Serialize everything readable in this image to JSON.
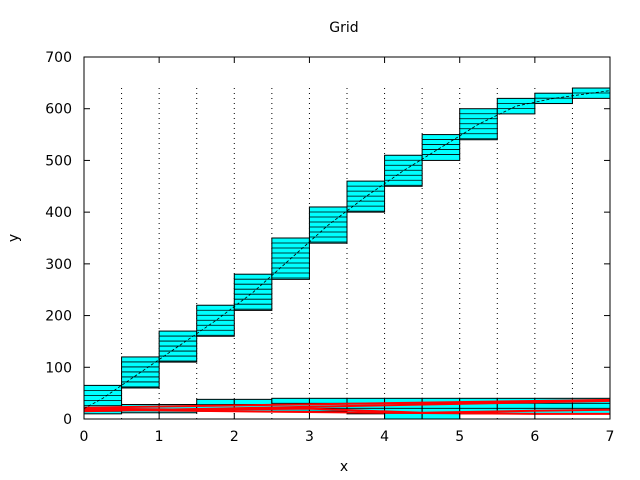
{
  "chart_data": {
    "type": "bar",
    "title": "Grid",
    "xlabel": "x",
    "ylabel": "y",
    "xlim": [
      0,
      7
    ],
    "ylim": [
      0,
      700
    ],
    "xticks": [
      0,
      1,
      2,
      3,
      4,
      5,
      6,
      7
    ],
    "yticks": [
      0,
      100,
      200,
      300,
      400,
      500,
      600,
      700
    ],
    "grid": "vertical dotted every 0.5",
    "upper_bars": [
      {
        "x0": 0.0,
        "x1": 0.5,
        "low": 15,
        "high": 65
      },
      {
        "x0": 0.5,
        "x1": 1.0,
        "low": 60,
        "high": 120
      },
      {
        "x0": 1.0,
        "x1": 1.5,
        "low": 110,
        "high": 170
      },
      {
        "x0": 1.5,
        "x1": 2.0,
        "low": 160,
        "high": 220
      },
      {
        "x0": 2.0,
        "x1": 2.5,
        "low": 210,
        "high": 280
      },
      {
        "x0": 2.5,
        "x1": 3.0,
        "low": 270,
        "high": 350
      },
      {
        "x0": 3.0,
        "x1": 3.5,
        "low": 340,
        "high": 410
      },
      {
        "x0": 3.5,
        "x1": 4.0,
        "low": 400,
        "high": 460
      },
      {
        "x0": 4.0,
        "x1": 4.5,
        "low": 450,
        "high": 510
      },
      {
        "x0": 4.5,
        "x1": 5.0,
        "low": 500,
        "high": 550
      },
      {
        "x0": 5.0,
        "x1": 5.5,
        "low": 540,
        "high": 600
      },
      {
        "x0": 5.5,
        "x1": 6.0,
        "low": 590,
        "high": 620
      },
      {
        "x0": 6.0,
        "x1": 6.5,
        "low": 610,
        "high": 630
      },
      {
        "x0": 6.5,
        "x1": 7.0,
        "low": 620,
        "high": 640
      }
    ],
    "lower_bars": [
      {
        "x0": 0.0,
        "x1": 0.5,
        "low": 10,
        "high": 28
      },
      {
        "x0": 0.5,
        "x1": 1.0,
        "low": 12,
        "high": 28
      },
      {
        "x0": 1.0,
        "x1": 1.5,
        "low": 12,
        "high": 28
      },
      {
        "x0": 1.5,
        "x1": 2.0,
        "low": 15,
        "high": 38
      },
      {
        "x0": 2.0,
        "x1": 2.5,
        "low": 15,
        "high": 38
      },
      {
        "x0": 2.5,
        "x1": 3.0,
        "low": 15,
        "high": 40
      },
      {
        "x0": 3.0,
        "x1": 3.5,
        "low": 15,
        "high": 40
      },
      {
        "x0": 3.5,
        "x1": 4.0,
        "low": 10,
        "high": 40
      },
      {
        "x0": 4.0,
        "x1": 4.5,
        "low": 0,
        "high": 40
      },
      {
        "x0": 4.5,
        "x1": 5.0,
        "low": 0,
        "high": 40
      },
      {
        "x0": 5.0,
        "x1": 5.5,
        "low": 10,
        "high": 40
      },
      {
        "x0": 5.5,
        "x1": 6.0,
        "low": 10,
        "high": 40
      },
      {
        "x0": 6.0,
        "x1": 6.5,
        "low": 10,
        "high": 40
      },
      {
        "x0": 6.5,
        "x1": 7.0,
        "low": 10,
        "high": 40
      }
    ],
    "curve": {
      "x": [
        0,
        0.25,
        0.75,
        1.25,
        1.75,
        2.25,
        2.75,
        3.25,
        3.75,
        4.25,
        4.75,
        5.25,
        5.75,
        6.25,
        6.75,
        7.0
      ],
      "y": [
        20,
        40,
        90,
        140,
        190,
        245,
        310,
        375,
        430,
        480,
        525,
        570,
        605,
        620,
        630,
        635
      ]
    },
    "red_lines": [
      {
        "x": [
          0,
          7
        ],
        "y": [
          22,
          37
        ]
      },
      {
        "x": [
          0,
          7
        ],
        "y": [
          15,
          35
        ]
      },
      {
        "x": [
          0,
          1.5,
          3,
          4.5,
          6,
          7
        ],
        "y": [
          20,
          18,
          20,
          12,
          16,
          18
        ]
      },
      {
        "x": [
          0,
          2,
          4,
          6,
          7
        ],
        "y": [
          18,
          15,
          12,
          10,
          10
        ]
      }
    ],
    "colors": {
      "bar_fill": "#00ffff",
      "bar_stroke": "#000000",
      "red": "#ff0000",
      "curve": "#000000"
    }
  }
}
